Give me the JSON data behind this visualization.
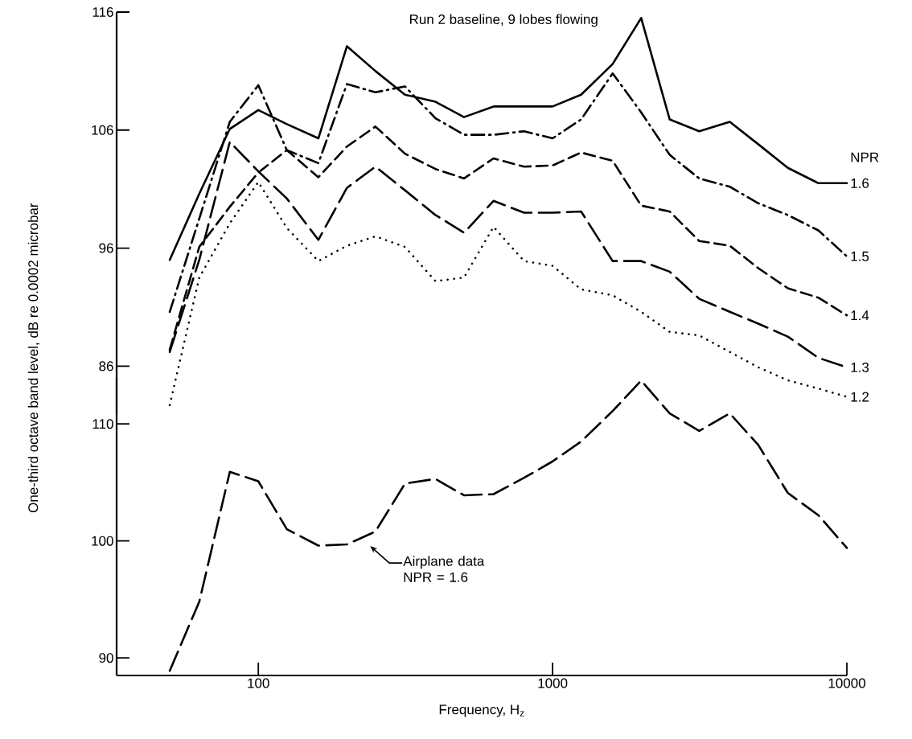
{
  "chart_data": [
    {
      "type": "line",
      "title": "Run 2 baseline, 9 lobes flowing",
      "ylabel": "One-third octave band level, dB re 0.0002 microbar",
      "legend_title": "NPR",
      "log": "x",
      "tick_labels": "y",
      "xlim": [
        33,
        10000
      ],
      "ylim": [
        82,
        116
      ],
      "yticks": [
        86,
        96,
        106,
        116
      ],
      "x": [
        50,
        63,
        80,
        100,
        125,
        160,
        200,
        250,
        315,
        400,
        500,
        630,
        800,
        1000,
        1250,
        1600,
        2000,
        2500,
        3150,
        4000,
        5000,
        6300,
        8000,
        10000
      ],
      "series": [
        {
          "name": "1.6",
          "color": "#000000",
          "line_style": "solid",
          "values": [
            95.0,
            100.6,
            106.1,
            107.7,
            106.5,
            105.3,
            113.1,
            111.0,
            109.0,
            108.4,
            107.1,
            108.0,
            108.0,
            108.0,
            109.0,
            111.6,
            115.5,
            106.9,
            105.9,
            106.7,
            104.8,
            102.8,
            101.5,
            101.5
          ]
        },
        {
          "name": "1.5",
          "color": "#000000",
          "line_style": "dash dot",
          "values": [
            90.6,
            98.5,
            106.7,
            109.8,
            104.3,
            103.2,
            109.9,
            109.2,
            109.7,
            107.0,
            105.6,
            105.6,
            105.9,
            105.3,
            106.9,
            110.8,
            107.5,
            103.9,
            101.9,
            101.2,
            99.8,
            98.8,
            97.5,
            95.3
          ]
        },
        {
          "name": "1.4",
          "color": "#000000",
          "line_style": "dashed",
          "values": [
            87.4,
            96.1,
            99.5,
            102.4,
            104.3,
            102.0,
            104.6,
            106.3,
            104.0,
            102.7,
            101.9,
            103.6,
            102.9,
            103.0,
            104.1,
            103.4,
            99.6,
            99.1,
            96.6,
            96.2,
            94.3,
            92.6,
            91.8,
            90.3
          ]
        },
        {
          "name": "1.3",
          "color": "#000000",
          "line_style": "long dashed",
          "values": [
            87.2,
            95.0,
            105.0,
            102.5,
            100.2,
            96.7,
            101.1,
            102.9,
            100.9,
            98.8,
            97.3,
            100.0,
            99.0,
            99.0,
            99.1,
            94.9,
            94.9,
            94.0,
            91.7,
            90.6,
            89.6,
            88.5,
            86.7,
            85.9
          ]
        },
        {
          "name": "1.2",
          "color": "#000000",
          "line_style": "dotted",
          "values": [
            82.7,
            93.5,
            98.1,
            101.6,
            97.7,
            94.9,
            96.2,
            97.0,
            96.1,
            93.2,
            93.5,
            97.8,
            94.9,
            94.5,
            92.5,
            92.0,
            90.6,
            88.9,
            88.6,
            87.2,
            85.9,
            84.8,
            84.1,
            83.4
          ]
        }
      ]
    },
    {
      "type": "line",
      "xlabel": "Frequency, H$_{z}$",
      "log": "x",
      "xlim": [
        33,
        10000
      ],
      "ylim": [
        88.5,
        114
      ],
      "xticks": [
        100,
        1000,
        10000
      ],
      "yticks": [
        90,
        100,
        110
      ],
      "x": [
        50,
        63,
        80,
        100,
        125,
        160,
        200,
        250,
        315,
        400,
        500,
        630,
        800,
        1000,
        1250,
        1600,
        2000,
        2500,
        3150,
        4000,
        5000,
        6300,
        8000,
        10000
      ],
      "series": [
        {
          "color": "#000000",
          "line_style": "long dashed",
          "values": [
            88.9,
            94.8,
            105.9,
            105.1,
            101.0,
            99.6,
            99.7,
            100.8,
            104.9,
            105.3,
            103.9,
            104.0,
            105.4,
            106.8,
            108.5,
            111.1,
            113.7,
            110.9,
            109.4,
            110.9,
            108.2,
            104.1,
            102.2,
            99.4
          ]
        }
      ],
      "annotations": [
        "Airplane data NPR = 1.6"
      ]
    }
  ]
}
